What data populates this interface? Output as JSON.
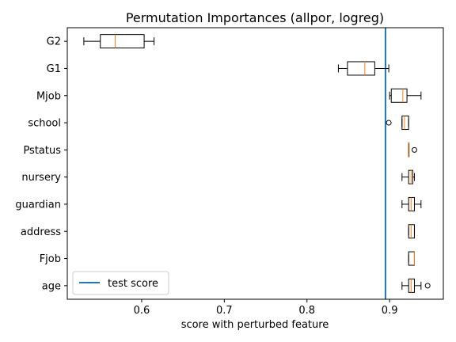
{
  "chart_data": {
    "type": "boxplot",
    "orientation": "horizontal",
    "title": "Permutation Importances (allpor, logreg)",
    "xlabel": "score with perturbed feature",
    "ylabel": "",
    "xlim": [
      0.51,
      0.965
    ],
    "xticks": [
      0.6,
      0.7,
      0.8,
      0.9
    ],
    "xtick_labels": [
      "0.6",
      "0.7",
      "0.8",
      "0.9"
    ],
    "grid": false,
    "colors": {
      "box": "#000000",
      "median": "#ff7f0e",
      "ref_line": "#1f77b4"
    },
    "reference_line": {
      "name": "test score",
      "x": 0.895
    },
    "legend": {
      "position": "lower-left",
      "entries": [
        "test score"
      ]
    },
    "features": [
      {
        "label": "G2",
        "whisker_low": 0.53,
        "q1": 0.55,
        "median": 0.568,
        "q3": 0.603,
        "whisker_high": 0.615,
        "outliers": []
      },
      {
        "label": "G1",
        "whisker_low": 0.838,
        "q1": 0.849,
        "median": 0.87,
        "q3": 0.882,
        "whisker_high": 0.899,
        "outliers": []
      },
      {
        "label": "Mjob",
        "whisker_low": 0.9,
        "q1": 0.902,
        "median": 0.916,
        "q3": 0.921,
        "whisker_high": 0.938,
        "outliers": []
      },
      {
        "label": "school",
        "whisker_low": 0.915,
        "q1": 0.915,
        "median": 0.918,
        "q3": 0.923,
        "whisker_high": 0.923,
        "outliers": [
          0.899
        ]
      },
      {
        "label": "Pstatus",
        "whisker_low": 0.923,
        "q1": 0.923,
        "median": 0.923,
        "q3": 0.923,
        "whisker_high": 0.923,
        "outliers": [
          0.93
        ]
      },
      {
        "label": "nursery",
        "whisker_low": 0.915,
        "q1": 0.923,
        "median": 0.926,
        "q3": 0.928,
        "whisker_high": 0.93,
        "outliers": []
      },
      {
        "label": "guardian",
        "whisker_low": 0.915,
        "q1": 0.923,
        "median": 0.926,
        "q3": 0.93,
        "whisker_high": 0.938,
        "outliers": []
      },
      {
        "label": "address",
        "whisker_low": 0.923,
        "q1": 0.923,
        "median": 0.926,
        "q3": 0.93,
        "whisker_high": 0.93,
        "outliers": []
      },
      {
        "label": "Fjob",
        "whisker_low": 0.923,
        "q1": 0.923,
        "median": 0.93,
        "q3": 0.93,
        "whisker_high": 0.93,
        "outliers": []
      },
      {
        "label": "age",
        "whisker_low": 0.915,
        "q1": 0.923,
        "median": 0.926,
        "q3": 0.93,
        "whisker_high": 0.938,
        "outliers": [
          0.946
        ]
      }
    ]
  }
}
